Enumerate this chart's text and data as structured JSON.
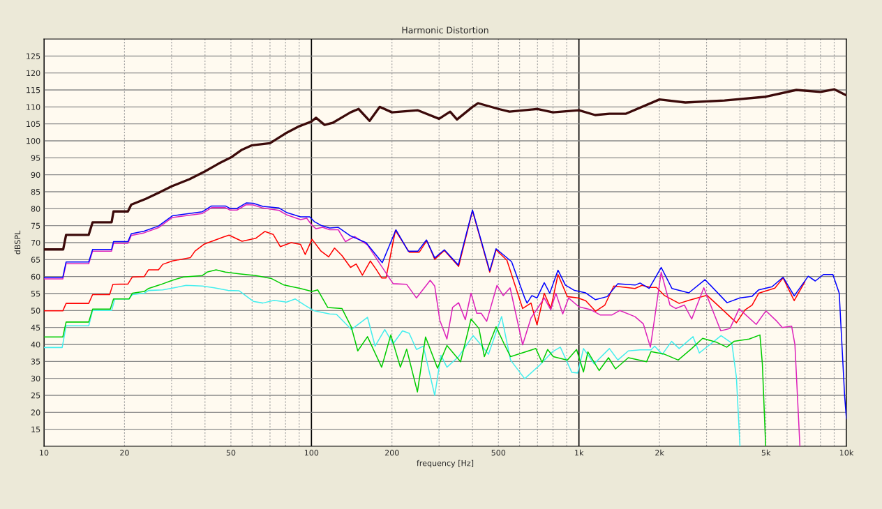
{
  "chart_data": {
    "type": "line",
    "title": "Harmonic Distortion",
    "xlabel": "frequency [Hz]",
    "ylabel": "dBSPL",
    "log": "x",
    "grid": true,
    "legend": false,
    "xlim": [
      10,
      10000
    ],
    "ylim": [
      10,
      130
    ],
    "xticks": [
      10,
      20,
      {
        "value": 30,
        "label": null
      },
      {
        "value": 40,
        "label": null
      },
      50,
      {
        "value": 60,
        "label": null
      },
      {
        "value": 70,
        "label": null
      },
      {
        "value": 80,
        "label": null
      },
      {
        "value": 90,
        "label": null
      },
      100,
      200,
      {
        "value": 300,
        "label": null
      },
      {
        "value": 400,
        "label": null
      },
      500,
      {
        "value": 600,
        "label": null
      },
      {
        "value": 700,
        "label": null
      },
      {
        "value": 800,
        "label": null
      },
      {
        "value": 900,
        "label": null
      },
      {
        "value": 1000,
        "label": "1k"
      },
      {
        "value": 2000,
        "label": "2k"
      },
      {
        "value": 3000,
        "label": null
      },
      {
        "value": 4000,
        "label": null
      },
      {
        "value": 5000,
        "label": "5k"
      },
      {
        "value": 6000,
        "label": null
      },
      {
        "value": 7000,
        "label": null
      },
      {
        "value": 8000,
        "label": null
      },
      {
        "value": 9000,
        "label": null
      },
      {
        "value": 10000,
        "label": "10k"
      }
    ],
    "yticks": [
      15,
      20,
      25,
      30,
      35,
      40,
      45,
      50,
      55,
      60,
      65,
      70,
      75,
      80,
      85,
      90,
      95,
      100,
      105,
      110,
      115,
      120,
      125
    ],
    "series": [
      {
        "color": "#3c0a0a",
        "x": [
          10,
          11.8,
          12.1,
          14.7,
          15.2,
          17.9,
          18.2,
          20.6,
          21.2,
          24,
          27,
          30,
          35,
          40,
          45,
          50,
          55,
          60,
          70,
          80,
          90,
          100,
          104,
          112,
          120,
          140,
          150,
          165,
          180,
          200,
          250,
          300,
          330,
          350,
          400,
          420,
          500,
          550,
          700,
          800,
          1000,
          1150,
          1300,
          1500,
          2000,
          2500,
          3500,
          5000,
          6500,
          8000,
          9000,
          10000
        ],
        "values": [
          68,
          68,
          72.3,
          72.3,
          76,
          76,
          79.2,
          79.2,
          81.2,
          82.9,
          84.8,
          86.6,
          88.7,
          91,
          93.3,
          95.1,
          97.4,
          98.7,
          99.3,
          102.2,
          104.3,
          105.7,
          106.8,
          104.7,
          105.3,
          108.4,
          109.4,
          105.9,
          110,
          108.4,
          109,
          106.5,
          108.6,
          106.3,
          110,
          111.1,
          109.4,
          108.6,
          109.4,
          108.4,
          109,
          107.6,
          108,
          108,
          112.2,
          111.3,
          111.9,
          113,
          115,
          114.4,
          115.2,
          113.4
        ]
      },
      {
        "color": "#0000ff",
        "x": [
          10,
          11.76,
          12.1,
          14.7,
          15.2,
          17.9,
          18.2,
          20.6,
          21.2,
          23.7,
          26.8,
          30.2,
          39.1,
          42.3,
          47.7,
          49.6,
          52.7,
          57,
          60.6,
          65.8,
          75.7,
          80.7,
          91,
          98.5,
          102.5,
          108.6,
          117,
          126,
          140,
          160,
          184,
          207,
          230,
          250,
          269,
          289,
          314,
          354,
          400,
          464,
          490,
          560,
          627,
          640,
          667,
          697,
          742,
          778,
          835,
          890,
          963,
          1060,
          1153,
          1275,
          1398,
          1622,
          1693,
          1830,
          2030,
          2227,
          2575,
          2960,
          3580,
          4000,
          4440,
          4700,
          5270,
          5800,
          6380,
          7200,
          7650,
          8200,
          8900,
          9400,
          9850,
          10000
        ],
        "values": [
          59.8,
          59.8,
          64.3,
          64.3,
          68,
          68,
          70.3,
          70.3,
          72.6,
          73.4,
          74.9,
          77.9,
          79.1,
          80.8,
          80.8,
          80.1,
          80.1,
          81.7,
          81.6,
          80.7,
          80.2,
          78.9,
          77.6,
          77.6,
          76.2,
          75.1,
          74.3,
          74.5,
          72,
          70,
          64.1,
          73.8,
          67.5,
          67.5,
          70.8,
          65.5,
          67.9,
          63.4,
          79.6,
          61.7,
          68.2,
          64.4,
          53.7,
          52.2,
          54.4,
          53.7,
          58.2,
          55.1,
          61.9,
          57.5,
          55.9,
          55.2,
          53.2,
          54.1,
          57.9,
          57.5,
          58.1,
          56.5,
          62.7,
          56.5,
          55.2,
          59.1,
          52.3,
          53.7,
          54.2,
          56.1,
          57,
          59.8,
          54.3,
          60.1,
          58.7,
          60.6,
          60.6,
          55.1,
          24.7,
          18.1
        ]
      },
      {
        "color": "#dd22bb",
        "x": [
          10,
          11.76,
          12.1,
          14.7,
          15.2,
          17.9,
          18.2,
          20.6,
          21.2,
          23.7,
          26.8,
          30.2,
          39.1,
          42.3,
          47.7,
          49.6,
          52.7,
          57,
          60.6,
          65.8,
          75.7,
          80.7,
          91,
          96,
          100.5,
          104,
          110,
          117,
          126,
          134,
          145,
          162,
          183,
          202,
          227,
          247,
          278,
          289,
          302,
          321,
          337,
          355,
          376,
          395,
          415,
          431,
          452,
          494,
          521,
          553,
          616,
          662,
          709,
          742,
          785,
          820,
          870,
          915,
          1000,
          1110,
          1200,
          1330,
          1420,
          1620,
          1740,
          1850,
          1900,
          2030,
          2190,
          2300,
          2480,
          2640,
          2930,
          3390,
          3670,
          3970,
          4600,
          5000,
          5500,
          5760,
          6240,
          6420,
          6700
        ],
        "values": [
          59.3,
          59.3,
          63.8,
          63.8,
          67.5,
          67.5,
          69.8,
          69.8,
          72.1,
          72.9,
          74.4,
          77.4,
          78.6,
          80.3,
          80.3,
          79.6,
          79.6,
          81.2,
          81.1,
          80.2,
          79.5,
          78.2,
          76.8,
          77.2,
          75.1,
          74.1,
          74.5,
          73.8,
          73.8,
          70.3,
          71.8,
          69.3,
          63,
          57.9,
          57.7,
          53.7,
          58.9,
          57.2,
          47.1,
          41.6,
          50.9,
          52.3,
          47.3,
          55.1,
          49.2,
          49.2,
          46.8,
          57.4,
          54.4,
          56.7,
          39.9,
          47.8,
          51.3,
          53.7,
          50.2,
          55.1,
          49,
          53.7,
          51.1,
          50.2,
          48.7,
          48.7,
          50,
          48.2,
          46.1,
          39.2,
          45.4,
          61.3,
          51.6,
          50.6,
          51.6,
          47.5,
          56.7,
          44,
          44.7,
          50.5,
          45.9,
          49.9,
          46.8,
          45,
          45.4,
          39.9,
          10.1
        ]
      },
      {
        "color": "#ff0000",
        "x": [
          10,
          11.76,
          12.1,
          14.7,
          15.2,
          17.6,
          18.1,
          20.6,
          21.4,
          23.7,
          24.6,
          26.8,
          27.8,
          30.2,
          35.3,
          36.7,
          39.8,
          47,
          49.2,
          55,
          62,
          67,
          72,
          76.5,
          84,
          91,
          94.8,
          100.5,
          108.6,
          116,
          122,
          130,
          140,
          147,
          155,
          166,
          175,
          183,
          190,
          206,
          232,
          253,
          270,
          289,
          314,
          355,
          400,
          464,
          490,
          538,
          616,
          662,
          697,
          742,
          785,
          835,
          905,
          990,
          1060,
          1153,
          1250,
          1350,
          1620,
          1720,
          1860,
          1950,
          2090,
          2370,
          2575,
          3010,
          3450,
          3880,
          4180,
          4440,
          4700,
          5400,
          5800,
          6380,
          7000
        ],
        "values": [
          49.9,
          49.9,
          52.1,
          52.1,
          54.7,
          54.7,
          57.7,
          57.8,
          59.9,
          60,
          62,
          62,
          63.6,
          64.6,
          65.6,
          67.5,
          69.6,
          71.7,
          72.2,
          70.4,
          71.3,
          73.3,
          72.4,
          68.8,
          70,
          69.5,
          66.5,
          71,
          67.5,
          65.8,
          68.4,
          66.2,
          62.7,
          63.7,
          60.4,
          64.6,
          62,
          59.6,
          59.6,
          73.6,
          67.2,
          67.2,
          70.6,
          65.1,
          67.7,
          63,
          79.4,
          61.3,
          67.9,
          64.8,
          50.6,
          52.2,
          45.8,
          55.1,
          50.6,
          60.6,
          54.1,
          53.7,
          52.9,
          49.8,
          51.6,
          57.2,
          56.5,
          57.4,
          56.8,
          56.8,
          54.4,
          52.1,
          53,
          54.5,
          50.2,
          46.4,
          50.2,
          51.6,
          55.1,
          56.6,
          59.6,
          52.9,
          58.5
        ]
      },
      {
        "color": "#00cc00",
        "x": [
          10,
          11.76,
          12.1,
          14.7,
          15.2,
          17.7,
          18.2,
          20.8,
          21.4,
          23.7,
          24.6,
          27.2,
          30.2,
          33.2,
          39.1,
          40.7,
          44,
          47.7,
          53.7,
          62,
          71,
          79,
          91,
          100.5,
          105.5,
          115,
          130,
          141,
          149,
          162,
          183,
          198,
          215,
          227,
          249,
          267,
          296,
          321,
          361,
          395,
          423,
          443,
          490,
          525,
          555,
          690,
          728,
          764,
          802,
          905,
          980,
          1040,
          1080,
          1190,
          1290,
          1370,
          1530,
          1790,
          1860,
          2090,
          2350,
          2640,
          2900,
          3280,
          3570,
          3800,
          4330,
          4750,
          4850,
          4990
        ],
        "values": [
          42.2,
          42.2,
          46.6,
          46.6,
          50.4,
          50.4,
          53.4,
          53.4,
          55.1,
          55.6,
          56.5,
          57.6,
          58.9,
          59.9,
          60.3,
          61.3,
          62,
          61.3,
          60.8,
          60.3,
          59.4,
          57.5,
          56.5,
          55.6,
          56.1,
          50.9,
          50.6,
          45.1,
          38.1,
          42.3,
          33.3,
          42.8,
          33.3,
          38.6,
          26,
          42.2,
          33,
          39.7,
          34.9,
          47.5,
          44.7,
          36.4,
          45.2,
          40.2,
          36.4,
          38.8,
          34.7,
          38.5,
          36.4,
          35.4,
          38.5,
          31.9,
          37.8,
          32.3,
          36.1,
          32.8,
          36.1,
          34.9,
          37.9,
          37.1,
          35.4,
          38.8,
          41.8,
          40.6,
          39.2,
          40.9,
          41.6,
          42.8,
          34.3,
          10.1
        ]
      },
      {
        "color": "#44eeee",
        "x": [
          10,
          11.7,
          12.1,
          14.7,
          15.2,
          17.9,
          18.4,
          20.8,
          21.4,
          23.7,
          24.6,
          27.8,
          30.2,
          34,
          39.1,
          43.3,
          48.8,
          53.7,
          60.6,
          65.8,
          72.5,
          80.7,
          87,
          94.8,
          102.5,
          117,
          124,
          141,
          162,
          173,
          188,
          202,
          219,
          232,
          247,
          262,
          289,
          305,
          321,
          355,
          402,
          427,
          459,
          514,
          555,
          627,
          709,
          795,
          852,
          940,
          990,
          1040,
          1140,
          1300,
          1398,
          1530,
          1693,
          1860,
          1920,
          2050,
          2220,
          2370,
          2670,
          2820,
          3400,
          3730,
          3880,
          4000
        ],
        "values": [
          39.1,
          39.1,
          45.5,
          45.5,
          50,
          50,
          53.4,
          53.4,
          54.7,
          55.1,
          55.9,
          56.1,
          56.6,
          57.4,
          57.2,
          56.7,
          55.9,
          55.8,
          52.7,
          52.2,
          53,
          52.5,
          53.4,
          51.5,
          49.9,
          49,
          48.9,
          44.4,
          48,
          39.5,
          44.4,
          40.2,
          44,
          43.3,
          38.5,
          39.5,
          25,
          36.8,
          33.3,
          36.4,
          42.6,
          40.2,
          37.1,
          48.2,
          35.4,
          29.9,
          33.7,
          37.8,
          39.2,
          31.8,
          31.6,
          38.8,
          34.3,
          38.8,
          35.4,
          38.1,
          38.4,
          38.4,
          39.5,
          37.1,
          40.9,
          38.8,
          42.3,
          37.5,
          42.6,
          40.4,
          30.2,
          10.1
        ]
      }
    ]
  }
}
